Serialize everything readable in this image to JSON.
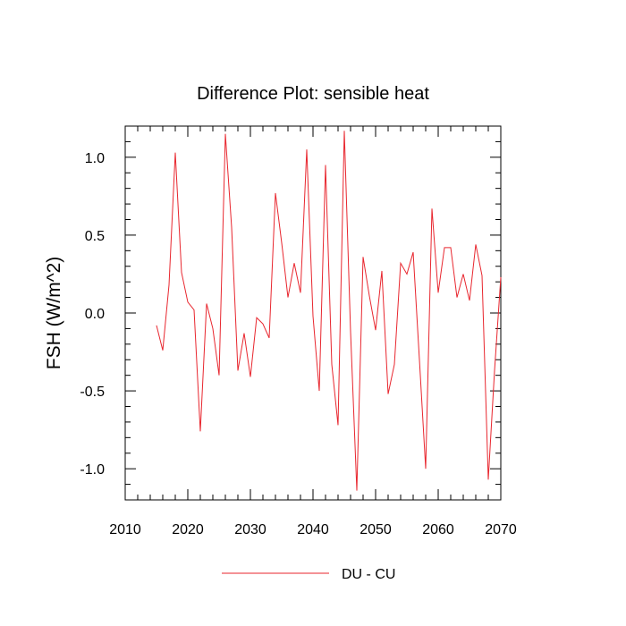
{
  "chart_data": {
    "type": "line",
    "title": "Difference Plot: sensible heat",
    "xlabel": "",
    "ylabel": "FSH  (W/m^2)",
    "xlim": [
      2010,
      2070
    ],
    "ylim": [
      -1.2,
      1.2
    ],
    "x_ticks": [
      2010,
      2020,
      2030,
      2040,
      2050,
      2060,
      2070
    ],
    "x_tick_labels": [
      "2010",
      "2020",
      "2030",
      "2040",
      "2050",
      "2060",
      "2070"
    ],
    "y_ticks": [
      -1.0,
      -0.5,
      0.0,
      0.5,
      1.0
    ],
    "y_tick_labels": [
      "-1.0",
      "-0.5",
      "0.0",
      "0.5",
      "1.0"
    ],
    "grid": false,
    "legend_position": "bottom-center",
    "series": [
      {
        "name": "DU - CU",
        "color": "#e8262e",
        "x": [
          2015,
          2016,
          2017,
          2018,
          2019,
          2020,
          2021,
          2022,
          2023,
          2024,
          2025,
          2026,
          2027,
          2028,
          2029,
          2030,
          2031,
          2032,
          2033,
          2034,
          2035,
          2036,
          2037,
          2038,
          2039,
          2040,
          2041,
          2042,
          2043,
          2044,
          2045,
          2046,
          2047,
          2048,
          2049,
          2050,
          2051,
          2052,
          2053,
          2054,
          2055,
          2056,
          2057,
          2058,
          2059,
          2060,
          2061,
          2062,
          2063,
          2064,
          2065,
          2066,
          2067,
          2068,
          2069,
          2070
        ],
        "values": [
          -0.08,
          -0.24,
          0.18,
          1.03,
          0.26,
          0.07,
          0.02,
          -0.76,
          0.06,
          -0.1,
          -0.4,
          1.15,
          0.55,
          -0.37,
          -0.13,
          -0.41,
          -0.03,
          -0.07,
          -0.16,
          0.77,
          0.45,
          0.1,
          0.32,
          0.13,
          1.05,
          -0.02,
          -0.5,
          0.95,
          -0.33,
          -0.72,
          1.17,
          -0.12,
          -1.14,
          0.36,
          0.11,
          -0.11,
          0.27,
          -0.52,
          -0.33,
          0.32,
          0.25,
          0.39,
          -0.3,
          -1.0,
          0.67,
          0.13,
          0.42,
          0.42,
          0.1,
          0.25,
          0.08,
          0.44,
          0.24,
          -1.07,
          -0.37,
          0.23
        ]
      }
    ]
  }
}
